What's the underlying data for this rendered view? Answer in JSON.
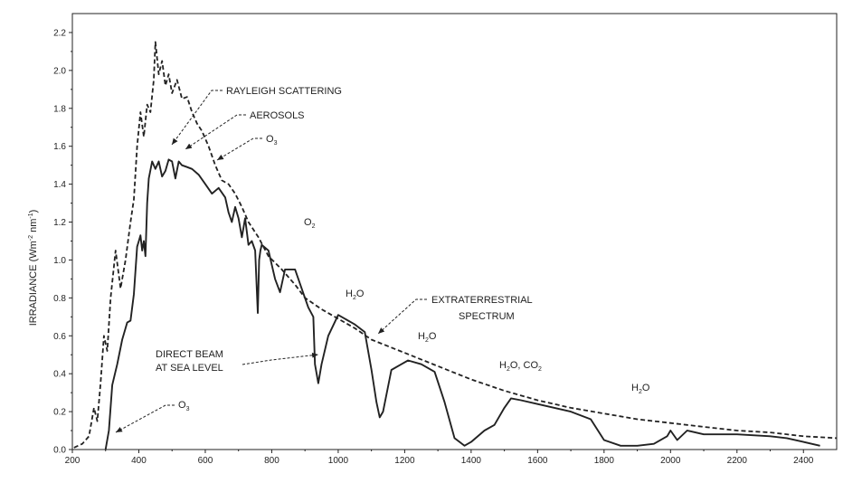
{
  "chart_data": {
    "type": "line",
    "xlabel": "",
    "ylabel": "IRRADIANCE (Wm-2nm-1)",
    "ylabel_prefix": "IRRADIANCE (Wm",
    "ylabel_sup1": "-2",
    "ylabel_mid": " nm",
    "ylabel_sup2": "-1",
    "ylabel_suffix": ")",
    "xlim": [
      200,
      2500
    ],
    "ylim": [
      0,
      2.3
    ],
    "x_ticks": [
      200,
      400,
      600,
      800,
      1000,
      1200,
      1400,
      1600,
      1800,
      2000,
      2200,
      2400
    ],
    "y_ticks": [
      0.0,
      0.2,
      0.4,
      0.6,
      0.8,
      1.0,
      1.2,
      1.4,
      1.6,
      1.8,
      2.0,
      2.2
    ],
    "x_tick_labels": [
      "200",
      "400",
      "600",
      "800",
      "1000",
      "1200",
      "1400",
      "1600",
      "1800",
      "2000",
      "2200",
      "2400"
    ],
    "y_tick_labels": [
      "0.0",
      "0.2",
      "0.4",
      "0.6",
      "0.8",
      "1.0",
      "1.2",
      "1.4",
      "1.6",
      "1.8",
      "2.0",
      "2.2"
    ],
    "grid": false,
    "series": [
      {
        "name": "EXTRATERRESTRIAL SPECTRUM",
        "style": "dashed",
        "color": "#222222",
        "x": [
          205,
          230,
          250,
          265,
          275,
          285,
          295,
          305,
          315,
          330,
          345,
          360,
          375,
          385,
          395,
          405,
          415,
          425,
          435,
          445,
          450,
          460,
          470,
          480,
          490,
          500,
          515,
          530,
          545,
          560,
          575,
          590,
          610,
          630,
          650,
          670,
          690,
          710,
          730,
          760,
          790,
          830,
          870,
          900,
          950,
          1000,
          1050,
          1100,
          1200,
          1300,
          1400,
          1500,
          1600,
          1700,
          1800,
          1900,
          2000,
          2100,
          2200,
          2300,
          2400,
          2500
        ],
        "y": [
          0.01,
          0.03,
          0.07,
          0.22,
          0.15,
          0.35,
          0.6,
          0.52,
          0.8,
          1.05,
          0.85,
          1.0,
          1.2,
          1.32,
          1.6,
          1.78,
          1.65,
          1.82,
          1.78,
          1.95,
          2.15,
          1.98,
          2.05,
          1.92,
          1.98,
          1.88,
          1.95,
          1.85,
          1.86,
          1.78,
          1.72,
          1.68,
          1.6,
          1.5,
          1.42,
          1.4,
          1.35,
          1.28,
          1.2,
          1.12,
          1.02,
          0.95,
          0.87,
          0.8,
          0.74,
          0.69,
          0.64,
          0.58,
          0.51,
          0.44,
          0.37,
          0.31,
          0.26,
          0.22,
          0.19,
          0.16,
          0.14,
          0.12,
          0.1,
          0.09,
          0.07,
          0.06
        ]
      },
      {
        "name": "DIRECT BEAM AT SEA LEVEL",
        "style": "solid",
        "color": "#222222",
        "x": [
          300,
          310,
          320,
          335,
          350,
          365,
          375,
          385,
          395,
          400,
          405,
          410,
          415,
          420,
          425,
          430,
          440,
          450,
          460,
          470,
          480,
          490,
          500,
          510,
          520,
          530,
          545,
          560,
          580,
          600,
          620,
          640,
          660,
          670,
          680,
          690,
          700,
          710,
          720,
          730,
          740,
          750,
          758,
          762,
          766,
          770,
          790,
          810,
          825,
          840,
          870,
          890,
          910,
          925,
          930,
          940,
          950,
          970,
          1000,
          1050,
          1080,
          1100,
          1115,
          1125,
          1135,
          1160,
          1190,
          1210,
          1250,
          1290,
          1320,
          1350,
          1380,
          1400,
          1440,
          1470,
          1500,
          1520,
          1550,
          1600,
          1700,
          1760,
          1800,
          1850,
          1900,
          1950,
          1990,
          2000,
          2020,
          2050,
          2100,
          2200,
          2300,
          2350,
          2400,
          2450
        ],
        "y": [
          0.0,
          0.1,
          0.34,
          0.45,
          0.58,
          0.67,
          0.68,
          0.82,
          1.07,
          1.1,
          1.13,
          1.05,
          1.1,
          1.02,
          1.3,
          1.43,
          1.52,
          1.48,
          1.52,
          1.44,
          1.47,
          1.53,
          1.52,
          1.43,
          1.52,
          1.5,
          1.49,
          1.48,
          1.45,
          1.4,
          1.35,
          1.38,
          1.33,
          1.25,
          1.2,
          1.28,
          1.22,
          1.12,
          1.22,
          1.08,
          1.1,
          1.05,
          0.72,
          1.0,
          1.05,
          1.08,
          1.05,
          0.9,
          0.83,
          0.95,
          0.95,
          0.85,
          0.75,
          0.7,
          0.45,
          0.35,
          0.45,
          0.6,
          0.71,
          0.66,
          0.62,
          0.42,
          0.25,
          0.17,
          0.2,
          0.42,
          0.45,
          0.47,
          0.45,
          0.41,
          0.25,
          0.06,
          0.02,
          0.04,
          0.1,
          0.13,
          0.22,
          0.27,
          0.26,
          0.24,
          0.2,
          0.16,
          0.05,
          0.02,
          0.02,
          0.03,
          0.07,
          0.1,
          0.05,
          0.1,
          0.08,
          0.08,
          0.07,
          0.06,
          0.04,
          0.02
        ]
      }
    ],
    "annotations": [
      {
        "key": "rayleigh",
        "text": "RAYLEIGH SCATTERING"
      },
      {
        "key": "aerosols",
        "text": "AEROSOLS"
      },
      {
        "key": "o3_top",
        "base": "O",
        "sub": "3"
      },
      {
        "key": "o2",
        "base": "O",
        "sub": "2"
      },
      {
        "key": "h2o_1",
        "base": "H",
        "sub": "2",
        "tail": "O"
      },
      {
        "key": "extra1",
        "text": "EXTRATERRESTRIAL"
      },
      {
        "key": "extra2",
        "text": "SPECTRUM"
      },
      {
        "key": "h2o_2",
        "base": "H",
        "sub": "2",
        "tail": "O"
      },
      {
        "key": "direct1",
        "text": "DIRECT BEAM"
      },
      {
        "key": "direct2",
        "text": "AT SEA LEVEL"
      },
      {
        "key": "h2o_co2",
        "base": "H",
        "sub": "2",
        "tail": "O, CO",
        "sub2": "2"
      },
      {
        "key": "h2o_3",
        "base": "H",
        "sub": "2",
        "tail": "O"
      },
      {
        "key": "o3_bottom",
        "base": "O",
        "sub": "3"
      }
    ]
  }
}
